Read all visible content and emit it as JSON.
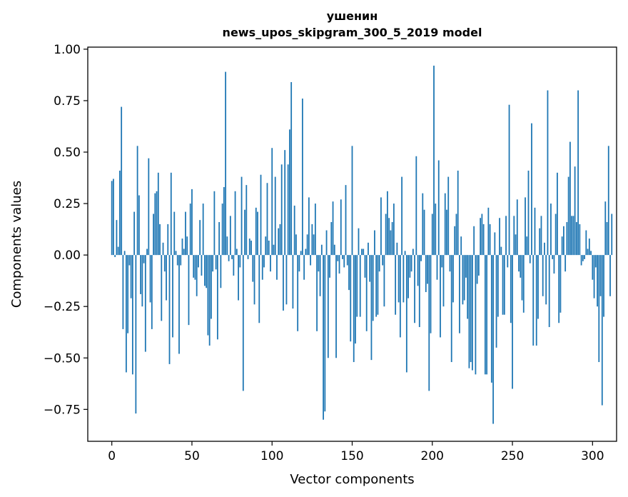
{
  "chart_data": {
    "type": "bar",
    "title": "ушенин",
    "subtitle": "news_upos_skipgram_300_5_2019 model",
    "xlabel": "Vector components",
    "ylabel": "Components values",
    "xlim": [
      -15,
      315
    ],
    "ylim": [
      -0.905,
      1.01
    ],
    "xticks": [
      0,
      50,
      100,
      150,
      200,
      250,
      300
    ],
    "xtick_labels": [
      "0",
      "50",
      "100",
      "150",
      "200",
      "250",
      "300"
    ],
    "yticks": [
      -0.75,
      -0.5,
      -0.25,
      0.0,
      0.25,
      0.5,
      0.75,
      1.0
    ],
    "ytick_labels": [
      "−0.75",
      "−0.50",
      "−0.25",
      "0.00",
      "0.25",
      "0.50",
      "0.75",
      "1.00"
    ],
    "bar_color": "#1f77b4",
    "grid": false,
    "values": [
      0.36,
      0.37,
      -0.01,
      0.17,
      0.04,
      0.41,
      0.72,
      -0.36,
      0.02,
      -0.57,
      -0.38,
      -0.05,
      -0.21,
      -0.58,
      0.21,
      -0.77,
      0.53,
      0.29,
      -0.19,
      -0.25,
      -0.04,
      -0.47,
      0.03,
      0.47,
      -0.23,
      -0.36,
      0.2,
      0.3,
      0.31,
      0.4,
      0.15,
      -0.32,
      0.06,
      -0.08,
      -0.22,
      0.15,
      -0.53,
      0.4,
      -0.4,
      0.21,
      0.02,
      -0.05,
      -0.48,
      -0.05,
      0.08,
      0.03,
      0.21,
      0.09,
      -0.34,
      0.25,
      0.32,
      -0.11,
      -0.12,
      -0.2,
      -0.06,
      0.17,
      -0.1,
      0.25,
      -0.15,
      -0.16,
      -0.39,
      -0.44,
      -0.31,
      -0.08,
      0.31,
      -0.07,
      -0.41,
      0.16,
      -0.16,
      0.25,
      0.33,
      0.89,
      0.09,
      -0.03,
      0.19,
      -0.02,
      -0.1,
      0.31,
      0.03,
      -0.22,
      -0.06,
      0.38,
      -0.66,
      0.22,
      0.34,
      -0.02,
      0.08,
      0.07,
      -0.13,
      -0.24,
      0.23,
      0.21,
      -0.33,
      0.39,
      -0.12,
      -0.06,
      0.09,
      0.35,
      0.07,
      -0.08,
      0.52,
      0.05,
      0.38,
      -0.12,
      0.13,
      0.15,
      0.44,
      -0.27,
      0.51,
      -0.24,
      0.44,
      0.61,
      0.84,
      -0.26,
      0.24,
      0.1,
      -0.37,
      -0.08,
      0.02,
      0.76,
      -0.12,
      0.03,
      0.1,
      0.28,
      -0.05,
      0.15,
      0.1,
      0.25,
      -0.37,
      -0.08,
      -0.2,
      0.05,
      -0.8,
      -0.76,
      0.12,
      -0.5,
      -0.11,
      0.16,
      0.26,
      0.05,
      -0.5,
      -0.03,
      -0.09,
      0.27,
      -0.02,
      -0.06,
      0.34,
      -0.05,
      -0.17,
      -0.42,
      0.53,
      -0.52,
      -0.43,
      -0.3,
      0.13,
      -0.3,
      0.03,
      0.03,
      -0.11,
      -0.37,
      0.06,
      -0.13,
      -0.51,
      -0.32,
      0.12,
      -0.3,
      -0.29,
      -0.08,
      0.28,
      -0.05,
      -0.25,
      0.2,
      0.31,
      0.18,
      0.12,
      0.16,
      0.25,
      -0.29,
      0.06,
      -0.23,
      -0.4,
      0.38,
      -0.23,
      0.02,
      -0.57,
      -0.21,
      -0.11,
      -0.08,
      0.03,
      -0.33,
      0.48,
      -0.15,
      -0.35,
      -0.03,
      0.3,
      0.22,
      -0.18,
      -0.14,
      -0.66,
      -0.38,
      0.2,
      0.92,
      0.25,
      -0.12,
      0.46,
      -0.4,
      -0.06,
      -0.25,
      0.3,
      0.22,
      0.38,
      -0.08,
      -0.52,
      -0.23,
      0.14,
      0.2,
      0.41,
      -0.38,
      0.09,
      -0.24,
      -0.22,
      -0.11,
      -0.31,
      -0.55,
      -0.52,
      -0.56,
      0.14,
      -0.58,
      -0.14,
      -0.1,
      0.18,
      0.2,
      0.15,
      -0.58,
      -0.58,
      0.23,
      0.15,
      -0.62,
      -0.82,
      0.11,
      -0.45,
      -0.3,
      0.18,
      0.04,
      -0.29,
      -0.29,
      0.19,
      -0.06,
      0.73,
      -0.33,
      -0.65,
      0.19,
      0.1,
      0.27,
      -0.08,
      -0.11,
      -0.22,
      -0.28,
      0.28,
      0.09,
      0.41,
      -0.04,
      0.64,
      -0.44,
      0.23,
      -0.44,
      -0.31,
      0.13,
      0.19,
      -0.2,
      0.06,
      -0.24,
      0.8,
      -0.35,
      0.25,
      -0.02,
      -0.09,
      0.2,
      0.4,
      -0.33,
      -0.28,
      0.09,
      0.14,
      -0.08,
      0.16,
      0.38,
      0.55,
      0.19,
      0.19,
      0.43,
      0.16,
      0.8,
      0.15,
      -0.05,
      -0.03,
      -0.02,
      0.12,
      0.03,
      0.08,
      0.02,
      -0.12,
      -0.21,
      -0.06,
      -0.25,
      -0.52,
      -0.2,
      -0.73,
      -0.3,
      0.26,
      0.16,
      0.53,
      -0.2,
      0.2
    ]
  }
}
